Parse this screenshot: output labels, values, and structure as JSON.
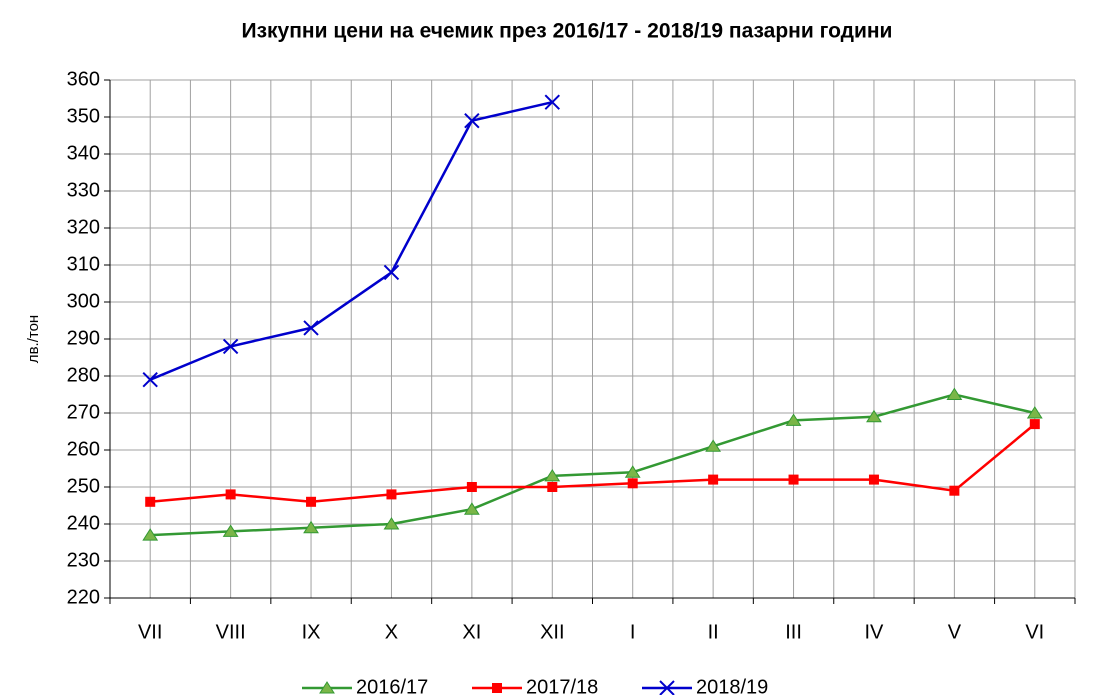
{
  "chart_data": {
    "type": "line",
    "title": "Изкупни цени на ечемик през 2016/17 - 2018/19 пазарни години",
    "y_label": "лв./тон",
    "categories": [
      "VII",
      "VIII",
      "IX",
      "X",
      "XI",
      "XII",
      "I",
      "II",
      "III",
      "IV",
      "V",
      "VI"
    ],
    "series": [
      {
        "name": "2016/17",
        "color": "#339933",
        "marker": "triangle",
        "values": [
          237,
          238,
          239,
          240,
          244,
          253,
          254,
          261,
          268,
          269,
          275,
          270
        ]
      },
      {
        "name": "2017/18",
        "color": "#ff0000",
        "marker": "square",
        "values": [
          246,
          248,
          246,
          248,
          250,
          250,
          251,
          252,
          252,
          252,
          249,
          267
        ]
      },
      {
        "name": "2018/19",
        "color": "#0000cc",
        "marker": "x",
        "values": [
          279,
          288,
          293,
          308,
          349,
          354,
          null,
          null,
          null,
          null,
          null,
          null
        ]
      }
    ],
    "ylim": [
      220,
      360
    ],
    "yticks": [
      220,
      230,
      240,
      250,
      260,
      270,
      280,
      290,
      300,
      310,
      320,
      330,
      340,
      350,
      360
    ],
    "grid": true,
    "legend": "bottom"
  }
}
